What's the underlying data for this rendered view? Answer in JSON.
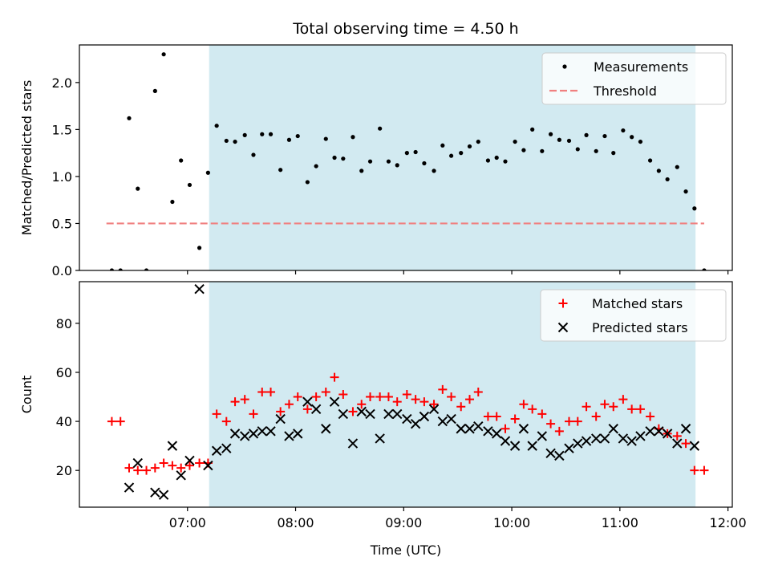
{
  "chart_data": {
    "title": "Total observing time = 4.50 h",
    "xlabel": "Time (UTC)",
    "x_tick_labels": [
      "07:00",
      "08:00",
      "09:00",
      "10:00",
      "11:00",
      "12:00"
    ],
    "x_tick_values": [
      7.0,
      8.0,
      9.0,
      10.0,
      11.0,
      12.0
    ],
    "xlim": [
      6.0,
      12.04
    ],
    "observing_window": {
      "start": 7.2,
      "end": 11.7,
      "color": "#add8e6"
    },
    "panels": [
      {
        "type": "scatter",
        "ylabel": "Matched/Predicted stars",
        "ylim": [
          0,
          2.4
        ],
        "y_ticks": [
          0.0,
          0.5,
          1.0,
          1.5,
          2.0
        ],
        "y_tick_labels": [
          "0.0",
          "0.5",
          "1.0",
          "1.5",
          "2.0"
        ],
        "legend": {
          "position": "upper right",
          "entries": [
            "Measurements",
            "Threshold"
          ]
        },
        "series": [
          {
            "name": "Measurements",
            "marker": "dot",
            "color": "#000000",
            "points": [
              [
                6.3,
                0.0
              ],
              [
                6.38,
                0.0
              ],
              [
                6.46,
                1.62
              ],
              [
                6.54,
                0.87
              ],
              [
                6.62,
                0.0
              ],
              [
                6.7,
                1.91
              ],
              [
                6.78,
                2.3
              ],
              [
                6.86,
                0.73
              ],
              [
                6.94,
                1.17
              ],
              [
                7.02,
                0.91
              ],
              [
                7.11,
                0.24
              ],
              [
                7.19,
                1.04
              ],
              [
                7.27,
                1.54
              ],
              [
                7.36,
                1.38
              ],
              [
                7.44,
                1.37
              ],
              [
                7.53,
                1.44
              ],
              [
                7.61,
                1.23
              ],
              [
                7.69,
                1.45
              ],
              [
                7.77,
                1.45
              ],
              [
                7.86,
                1.07
              ],
              [
                7.94,
                1.39
              ],
              [
                8.02,
                1.43
              ],
              [
                8.11,
                0.94
              ],
              [
                8.19,
                1.11
              ],
              [
                8.28,
                1.4
              ],
              [
                8.36,
                1.2
              ],
              [
                8.44,
                1.19
              ],
              [
                8.53,
                1.42
              ],
              [
                8.61,
                1.06
              ],
              [
                8.69,
                1.16
              ],
              [
                8.78,
                1.51
              ],
              [
                8.86,
                1.16
              ],
              [
                8.94,
                1.12
              ],
              [
                9.03,
                1.25
              ],
              [
                9.11,
                1.26
              ],
              [
                9.19,
                1.14
              ],
              [
                9.28,
                1.06
              ],
              [
                9.36,
                1.33
              ],
              [
                9.44,
                1.22
              ],
              [
                9.53,
                1.25
              ],
              [
                9.61,
                1.32
              ],
              [
                9.69,
                1.37
              ],
              [
                9.78,
                1.17
              ],
              [
                9.86,
                1.2
              ],
              [
                9.94,
                1.16
              ],
              [
                10.03,
                1.37
              ],
              [
                10.11,
                1.28
              ],
              [
                10.19,
                1.5
              ],
              [
                10.28,
                1.27
              ],
              [
                10.36,
                1.45
              ],
              [
                10.44,
                1.39
              ],
              [
                10.53,
                1.38
              ],
              [
                10.61,
                1.29
              ],
              [
                10.69,
                1.44
              ],
              [
                10.78,
                1.27
              ],
              [
                10.86,
                1.43
              ],
              [
                10.94,
                1.25
              ],
              [
                11.03,
                1.49
              ],
              [
                11.11,
                1.42
              ],
              [
                11.19,
                1.37
              ],
              [
                11.28,
                1.17
              ],
              [
                11.36,
                1.06
              ],
              [
                11.44,
                0.97
              ],
              [
                11.53,
                1.1
              ],
              [
                11.61,
                0.84
              ],
              [
                11.69,
                0.66
              ],
              [
                11.78,
                0.0
              ]
            ]
          },
          {
            "name": "Threshold",
            "type": "line",
            "style": "dashed",
            "color": "#f08080",
            "points": [
              [
                6.25,
                0.5
              ],
              [
                11.78,
                0.5
              ]
            ]
          }
        ]
      },
      {
        "type": "scatter",
        "ylabel": "Count",
        "ylim": [
          5,
          97
        ],
        "y_ticks": [
          20,
          40,
          60,
          80
        ],
        "y_tick_labels": [
          "20",
          "40",
          "60",
          "80"
        ],
        "legend": {
          "position": "upper right",
          "entries": [
            "Matched stars",
            "Predicted stars"
          ]
        },
        "series": [
          {
            "name": "Matched stars",
            "marker": "plus",
            "color": "#ff0000",
            "points": [
              [
                6.3,
                40
              ],
              [
                6.38,
                40
              ],
              [
                6.46,
                21
              ],
              [
                6.54,
                20
              ],
              [
                6.62,
                20
              ],
              [
                6.7,
                21
              ],
              [
                6.78,
                23
              ],
              [
                6.86,
                22
              ],
              [
                6.94,
                21
              ],
              [
                7.02,
                22
              ],
              [
                7.11,
                23
              ],
              [
                7.19,
                23
              ],
              [
                7.27,
                43
              ],
              [
                7.36,
                40
              ],
              [
                7.44,
                48
              ],
              [
                7.53,
                49
              ],
              [
                7.61,
                43
              ],
              [
                7.69,
                52
              ],
              [
                7.77,
                52
              ],
              [
                7.86,
                44
              ],
              [
                7.94,
                47
              ],
              [
                8.02,
                50
              ],
              [
                8.11,
                45
              ],
              [
                8.19,
                50
              ],
              [
                8.28,
                52
              ],
              [
                8.36,
                58
              ],
              [
                8.44,
                51
              ],
              [
                8.53,
                44
              ],
              [
                8.61,
                47
              ],
              [
                8.69,
                50
              ],
              [
                8.78,
                50
              ],
              [
                8.86,
                50
              ],
              [
                8.94,
                48
              ],
              [
                9.03,
                51
              ],
              [
                9.11,
                49
              ],
              [
                9.19,
                48
              ],
              [
                9.28,
                47
              ],
              [
                9.36,
                53
              ],
              [
                9.44,
                50
              ],
              [
                9.53,
                46
              ],
              [
                9.61,
                49
              ],
              [
                9.69,
                52
              ],
              [
                9.78,
                42
              ],
              [
                9.86,
                42
              ],
              [
                9.94,
                37
              ],
              [
                10.03,
                41
              ],
              [
                10.11,
                47
              ],
              [
                10.19,
                45
              ],
              [
                10.28,
                43
              ],
              [
                10.36,
                39
              ],
              [
                10.44,
                36
              ],
              [
                10.53,
                40
              ],
              [
                10.61,
                40
              ],
              [
                10.69,
                46
              ],
              [
                10.78,
                42
              ],
              [
                10.86,
                47
              ],
              [
                10.94,
                46
              ],
              [
                11.03,
                49
              ],
              [
                11.11,
                45
              ],
              [
                11.19,
                45
              ],
              [
                11.28,
                42
              ],
              [
                11.36,
                37
              ],
              [
                11.44,
                35
              ],
              [
                11.53,
                34
              ],
              [
                11.61,
                31
              ],
              [
                11.69,
                20
              ],
              [
                11.78,
                20
              ]
            ]
          },
          {
            "name": "Predicted stars",
            "marker": "x",
            "color": "#000000",
            "points": [
              [
                6.46,
                13
              ],
              [
                6.54,
                23
              ],
              [
                6.7,
                11
              ],
              [
                6.78,
                10
              ],
              [
                6.86,
                30
              ],
              [
                6.94,
                18
              ],
              [
                7.02,
                24
              ],
              [
                7.11,
                94
              ],
              [
                7.19,
                22
              ],
              [
                7.27,
                28
              ],
              [
                7.36,
                29
              ],
              [
                7.44,
                35
              ],
              [
                7.53,
                34
              ],
              [
                7.61,
                35
              ],
              [
                7.69,
                36
              ],
              [
                7.77,
                36
              ],
              [
                7.86,
                41
              ],
              [
                7.94,
                34
              ],
              [
                8.02,
                35
              ],
              [
                8.11,
                48
              ],
              [
                8.19,
                45
              ],
              [
                8.28,
                37
              ],
              [
                8.36,
                48
              ],
              [
                8.44,
                43
              ],
              [
                8.53,
                31
              ],
              [
                8.61,
                44
              ],
              [
                8.69,
                43
              ],
              [
                8.78,
                33
              ],
              [
                8.86,
                43
              ],
              [
                8.94,
                43
              ],
              [
                9.03,
                41
              ],
              [
                9.11,
                39
              ],
              [
                9.19,
                42
              ],
              [
                9.28,
                45
              ],
              [
                9.36,
                40
              ],
              [
                9.44,
                41
              ],
              [
                9.53,
                37
              ],
              [
                9.61,
                37
              ],
              [
                9.69,
                38
              ],
              [
                9.78,
                36
              ],
              [
                9.86,
                35
              ],
              [
                9.94,
                32
              ],
              [
                10.03,
                30
              ],
              [
                10.11,
                37
              ],
              [
                10.19,
                30
              ],
              [
                10.28,
                34
              ],
              [
                10.36,
                27
              ],
              [
                10.44,
                26
              ],
              [
                10.53,
                29
              ],
              [
                10.61,
                31
              ],
              [
                10.69,
                32
              ],
              [
                10.78,
                33
              ],
              [
                10.86,
                33
              ],
              [
                10.94,
                37
              ],
              [
                11.03,
                33
              ],
              [
                11.11,
                32
              ],
              [
                11.19,
                34
              ],
              [
                11.28,
                36
              ],
              [
                11.36,
                36
              ],
              [
                11.44,
                35
              ],
              [
                11.53,
                31
              ],
              [
                11.61,
                37
              ],
              [
                11.69,
                30
              ]
            ]
          }
        ]
      }
    ]
  }
}
